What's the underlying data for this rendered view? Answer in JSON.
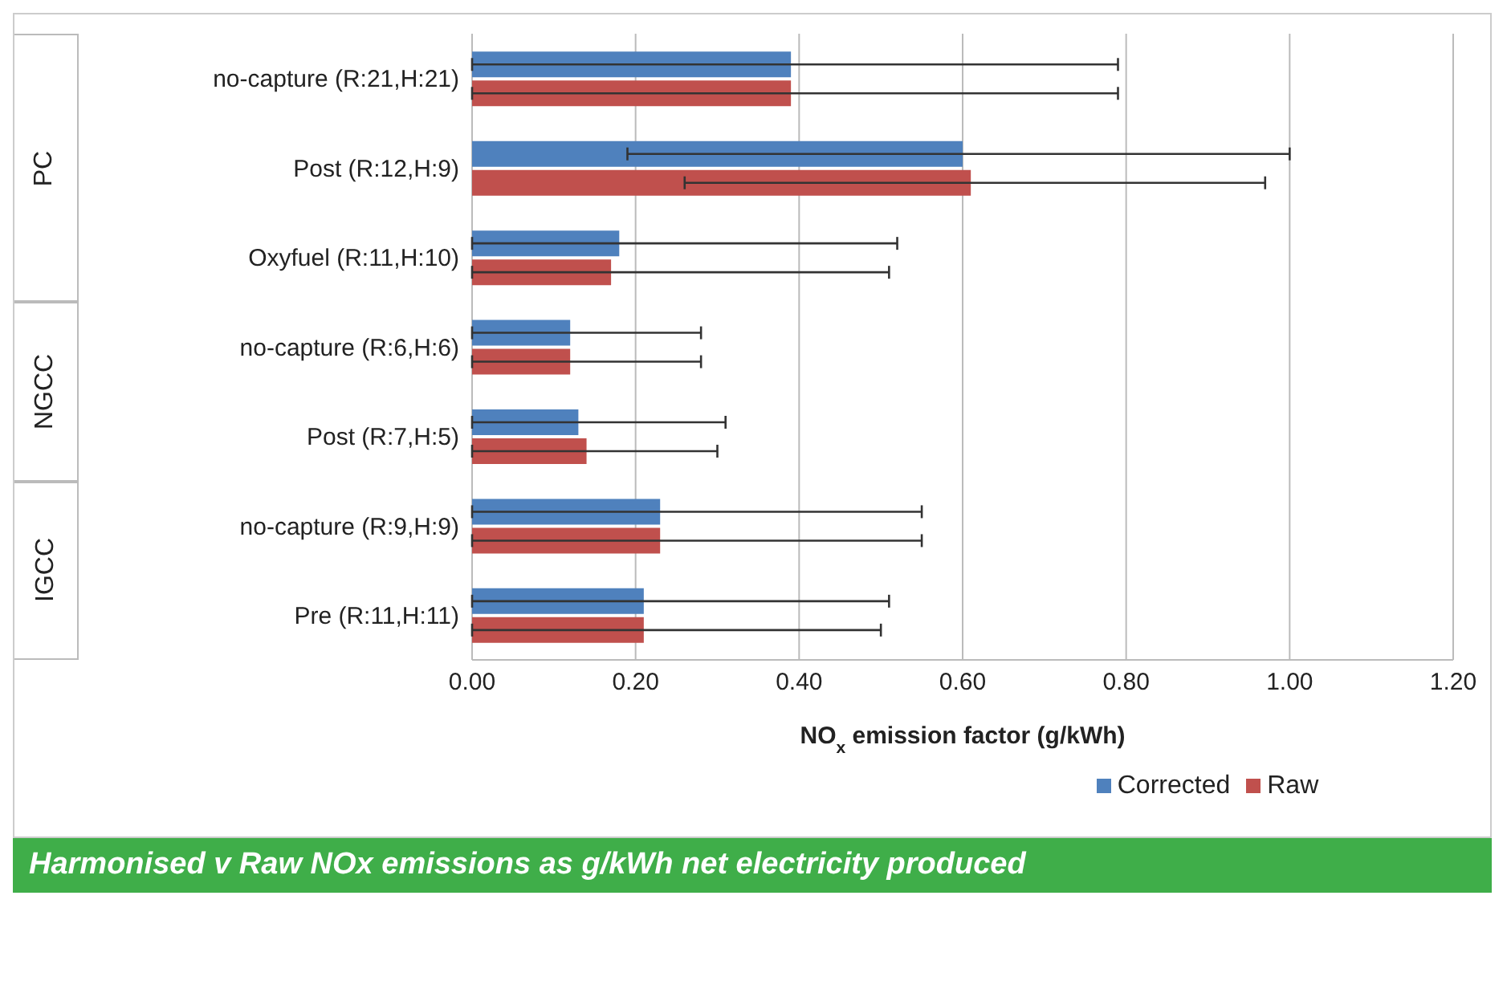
{
  "chart_data": {
    "type": "bar",
    "orientation": "horizontal",
    "categories": [
      "no-capture (R:21,H:21)",
      "Post (R:12,H:9)",
      "Oxyfuel (R:11,H:10)",
      "no-capture (R:6,H:6)",
      "Post (R:7,H:5)",
      "no-capture (R:9,H:9)",
      "Pre (R:11,H:11)"
    ],
    "series": [
      {
        "name": "Corrected",
        "color": "#4f81bd",
        "values": [
          0.39,
          0.6,
          0.18,
          0.12,
          0.13,
          0.23,
          0.21
        ],
        "errors": [
          [
            0,
            0.79
          ],
          [
            0.19,
            1.0
          ],
          [
            0,
            0.52
          ],
          [
            0,
            0.28
          ],
          [
            0,
            0.31
          ],
          [
            0,
            0.55
          ],
          [
            0,
            0.51
          ]
        ]
      },
      {
        "name": "Raw",
        "color": "#c0504d",
        "values": [
          0.39,
          0.61,
          0.17,
          0.12,
          0.14,
          0.23,
          0.21
        ],
        "errors": [
          [
            0,
            0.79
          ],
          [
            0.26,
            0.97
          ],
          [
            0,
            0.51
          ],
          [
            0,
            0.28
          ],
          [
            0,
            0.3
          ],
          [
            0,
            0.55
          ],
          [
            0,
            0.5
          ]
        ]
      }
    ],
    "xlabel": "NO$_{x}$ emission factor (g/kWh)",
    "xlim": [
      0,
      1.2
    ],
    "xticks": [
      {
        "value": 0,
        "label": "0.00"
      },
      {
        "value": 0.2,
        "label": "0.20"
      },
      {
        "value": 0.4,
        "label": "0.40"
      },
      {
        "value": 0.6,
        "label": "0.60"
      },
      {
        "value": 0.8,
        "label": "0.80"
      },
      {
        "value": 1.0,
        "label": "1.00"
      },
      {
        "value": 1.2,
        "label": "1.20"
      }
    ],
    "grid": "x",
    "legend": "bottom",
    "annotations": [
      "PC",
      "NGCC",
      "IGCC",
      "Harmonised v Raw NOx emissions as g/kWh net electricity produced"
    ]
  }
}
